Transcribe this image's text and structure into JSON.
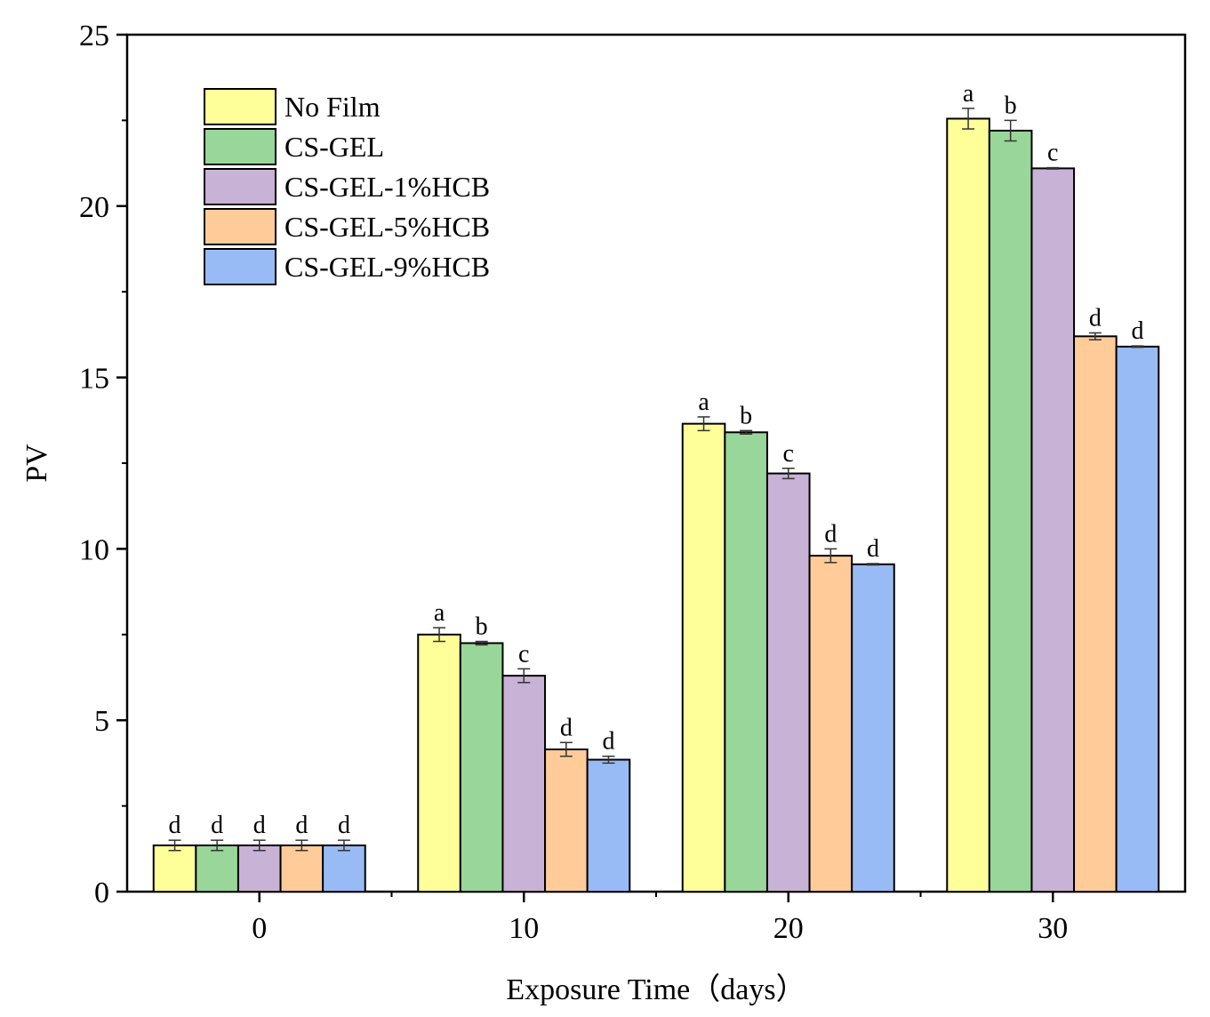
{
  "chart_data": {
    "type": "bar",
    "title": "",
    "xlabel": "Exposure Time（days）",
    "ylabel": "PV",
    "ylim": [
      0,
      25
    ],
    "yticks": [
      0,
      5,
      10,
      15,
      20,
      25
    ],
    "categories": [
      "0",
      "10",
      "20",
      "30"
    ],
    "legend_position": "top-left",
    "series": [
      {
        "name": "No Film",
        "color": "#FFFF99",
        "values": [
          1.35,
          7.5,
          13.65,
          22.55
        ],
        "errors": [
          0.15,
          0.2,
          0.2,
          0.3
        ],
        "labels": [
          "d",
          "a",
          "a",
          "a"
        ]
      },
      {
        "name": "CS-GEL",
        "color": "#99D699",
        "values": [
          1.35,
          7.25,
          13.4,
          22.2
        ],
        "errors": [
          0.15,
          0.05,
          0.05,
          0.3
        ],
        "labels": [
          "d",
          "b",
          "b",
          "b"
        ]
      },
      {
        "name": "CS-GEL-1%HCB",
        "color": "#C8B2D6",
        "values": [
          1.35,
          6.3,
          12.2,
          21.1
        ],
        "errors": [
          0.15,
          0.2,
          0.15,
          0.02
        ],
        "labels": [
          "d",
          "c",
          "c",
          "c"
        ]
      },
      {
        "name": "CS-GEL-5%HCB",
        "color": "#FFCC99",
        "values": [
          1.35,
          4.15,
          9.8,
          16.2
        ],
        "errors": [
          0.15,
          0.2,
          0.2,
          0.1
        ],
        "labels": [
          "d",
          "d",
          "d",
          "d"
        ]
      },
      {
        "name": "CS-GEL-9%HCB",
        "color": "#99BBF5",
        "values": [
          1.35,
          3.85,
          9.55,
          15.9
        ],
        "errors": [
          0.15,
          0.1,
          0.02,
          0.02
        ],
        "labels": [
          "d",
          "d",
          "d",
          "d"
        ]
      }
    ]
  }
}
